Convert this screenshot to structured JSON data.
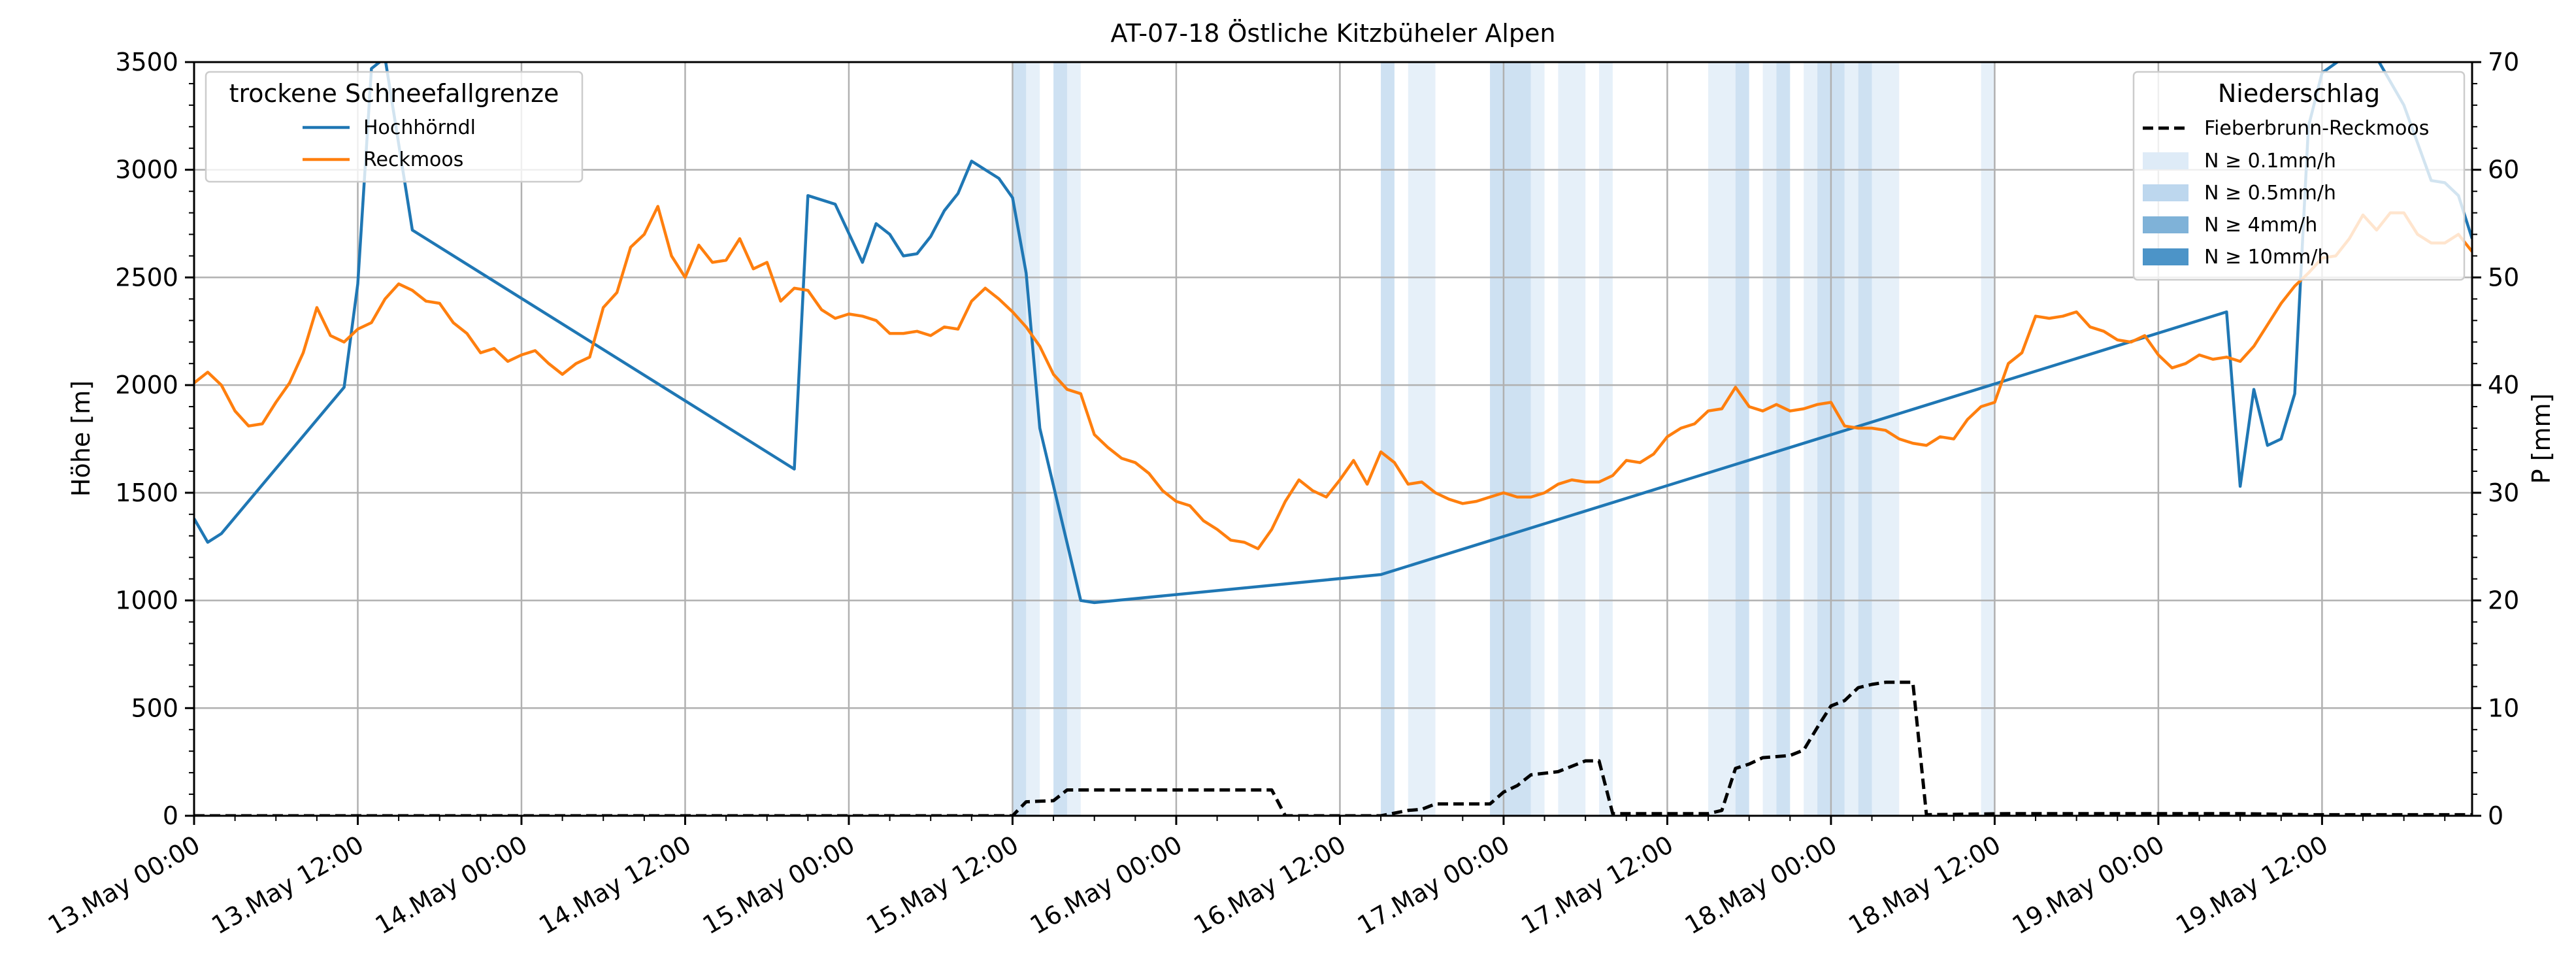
{
  "chart_data": {
    "type": "line",
    "title": "AT-07-18 Östliche Kitzbüheler Alpen",
    "ylabel": "Höhe [m]",
    "y2label": "P [mm]",
    "xlim": [
      0,
      167
    ],
    "ylim": [
      0,
      3500
    ],
    "y2lim": [
      0,
      70
    ],
    "grid": true,
    "x_unit": "hours since 13.May 00:00",
    "x_ticks": [
      {
        "x": 0,
        "label": "13.May 00:00"
      },
      {
        "x": 12,
        "label": "13.May 12:00"
      },
      {
        "x": 24,
        "label": "14.May 00:00"
      },
      {
        "x": 36,
        "label": "14.May 12:00"
      },
      {
        "x": 48,
        "label": "15.May 00:00"
      },
      {
        "x": 60,
        "label": "15.May 12:00"
      },
      {
        "x": 72,
        "label": "16.May 00:00"
      },
      {
        "x": 84,
        "label": "16.May 12:00"
      },
      {
        "x": 96,
        "label": "17.May 00:00"
      },
      {
        "x": 108,
        "label": "17.May 12:00"
      },
      {
        "x": 120,
        "label": "18.May 00:00"
      },
      {
        "x": 132,
        "label": "18.May 12:00"
      },
      {
        "x": 144,
        "label": "19.May 00:00"
      },
      {
        "x": 156,
        "label": "19.May 12:00"
      }
    ],
    "y_ticks": [
      0,
      500,
      1000,
      1500,
      2000,
      2500,
      3000,
      3500
    ],
    "y2_ticks": [
      0,
      10,
      20,
      30,
      40,
      50,
      60,
      70
    ],
    "legend_left": {
      "title": "trockene Schneefallgrenze",
      "placement": "top-left",
      "entries": [
        "Hochhörndl",
        "Reckmoos"
      ]
    },
    "legend_right": {
      "title": "Niederschlag",
      "placement": "top-right",
      "entries": [
        "Fieberbrunn-Reckmoos",
        "N ≥ 0.1mm/h",
        "N ≥ 0.5mm/h",
        "N ≥ 4mm/h",
        "N ≥ 10mm/h"
      ],
      "colors": [
        "#000000",
        "#deebf7",
        "#bdd7ee",
        "#7fb2d8",
        "#4c94c8"
      ]
    },
    "series": [
      {
        "name": "Hochhörndl",
        "color": "#1f77b4",
        "axis": "left",
        "points": [
          [
            0,
            1380
          ],
          [
            1,
            1270
          ],
          [
            2,
            1310
          ],
          [
            11,
            1990
          ],
          [
            12,
            2470
          ],
          [
            13,
            3470
          ],
          [
            14,
            3520
          ],
          [
            16,
            2720
          ],
          [
            44,
            1610
          ],
          [
            45,
            2880
          ],
          [
            47,
            2840
          ],
          [
            49,
            2570
          ],
          [
            50,
            2750
          ],
          [
            51,
            2700
          ],
          [
            52,
            2600
          ],
          [
            53,
            2610
          ],
          [
            54,
            2690
          ],
          [
            55,
            2810
          ],
          [
            56,
            2890
          ],
          [
            57,
            3040
          ],
          [
            59,
            2960
          ],
          [
            60,
            2870
          ],
          [
            61,
            2520
          ],
          [
            62,
            1800
          ],
          [
            65,
            1000
          ],
          [
            66,
            990
          ],
          [
            87,
            1120
          ],
          [
            149,
            2340
          ],
          [
            150,
            1530
          ],
          [
            151,
            1980
          ],
          [
            152,
            1720
          ],
          [
            153,
            1750
          ],
          [
            154,
            1960
          ],
          [
            155,
            3200
          ],
          [
            156,
            3450
          ],
          [
            158,
            3540
          ],
          [
            160,
            3520
          ],
          [
            162,
            3300
          ],
          [
            164,
            2950
          ],
          [
            165,
            2940
          ],
          [
            166,
            2880
          ],
          [
            167,
            2680
          ]
        ]
      },
      {
        "name": "Reckmoos",
        "color": "#ff7f0e",
        "axis": "left",
        "points": [
          [
            0,
            2010
          ],
          [
            1,
            2060
          ],
          [
            2,
            2000
          ],
          [
            3,
            1880
          ],
          [
            4,
            1810
          ],
          [
            5,
            1820
          ],
          [
            6,
            1920
          ],
          [
            7,
            2010
          ],
          [
            8,
            2150
          ],
          [
            9,
            2360
          ],
          [
            10,
            2230
          ],
          [
            11,
            2200
          ],
          [
            12,
            2260
          ],
          [
            13,
            2290
          ],
          [
            14,
            2400
          ],
          [
            15,
            2470
          ],
          [
            16,
            2440
          ],
          [
            17,
            2390
          ],
          [
            18,
            2380
          ],
          [
            19,
            2290
          ],
          [
            20,
            2240
          ],
          [
            21,
            2150
          ],
          [
            22,
            2170
          ],
          [
            23,
            2110
          ],
          [
            24,
            2140
          ],
          [
            25,
            2160
          ],
          [
            26,
            2100
          ],
          [
            27,
            2050
          ],
          [
            28,
            2100
          ],
          [
            29,
            2130
          ],
          [
            30,
            2360
          ],
          [
            31,
            2430
          ],
          [
            32,
            2640
          ],
          [
            33,
            2700
          ],
          [
            34,
            2830
          ],
          [
            35,
            2600
          ],
          [
            36,
            2500
          ],
          [
            37,
            2650
          ],
          [
            38,
            2570
          ],
          [
            39,
            2580
          ],
          [
            40,
            2680
          ],
          [
            41,
            2540
          ],
          [
            42,
            2570
          ],
          [
            43,
            2390
          ],
          [
            44,
            2450
          ],
          [
            45,
            2440
          ],
          [
            46,
            2350
          ],
          [
            47,
            2310
          ],
          [
            48,
            2330
          ],
          [
            49,
            2320
          ],
          [
            50,
            2300
          ],
          [
            51,
            2240
          ],
          [
            52,
            2240
          ],
          [
            53,
            2250
          ],
          [
            54,
            2230
          ],
          [
            55,
            2270
          ],
          [
            56,
            2260
          ],
          [
            57,
            2390
          ],
          [
            58,
            2450
          ],
          [
            59,
            2400
          ],
          [
            60,
            2340
          ],
          [
            61,
            2270
          ],
          [
            62,
            2180
          ],
          [
            63,
            2050
          ],
          [
            64,
            1980
          ],
          [
            65,
            1960
          ],
          [
            66,
            1770
          ],
          [
            67,
            1710
          ],
          [
            68,
            1660
          ],
          [
            69,
            1640
          ],
          [
            70,
            1590
          ],
          [
            71,
            1510
          ],
          [
            72,
            1460
          ],
          [
            73,
            1440
          ],
          [
            74,
            1370
          ],
          [
            75,
            1330
          ],
          [
            76,
            1280
          ],
          [
            77,
            1270
          ],
          [
            78,
            1240
          ],
          [
            79,
            1330
          ],
          [
            80,
            1460
          ],
          [
            81,
            1560
          ],
          [
            82,
            1510
          ],
          [
            83,
            1480
          ],
          [
            84,
            1560
          ],
          [
            85,
            1650
          ],
          [
            86,
            1540
          ],
          [
            87,
            1690
          ],
          [
            88,
            1640
          ],
          [
            89,
            1540
          ],
          [
            90,
            1550
          ],
          [
            91,
            1500
          ],
          [
            92,
            1470
          ],
          [
            93,
            1450
          ],
          [
            94,
            1460
          ],
          [
            95,
            1480
          ],
          [
            96,
            1500
          ],
          [
            97,
            1480
          ],
          [
            98,
            1480
          ],
          [
            99,
            1500
          ],
          [
            100,
            1540
          ],
          [
            101,
            1560
          ],
          [
            102,
            1550
          ],
          [
            103,
            1550
          ],
          [
            104,
            1580
          ],
          [
            105,
            1650
          ],
          [
            106,
            1640
          ],
          [
            107,
            1680
          ],
          [
            108,
            1760
          ],
          [
            109,
            1800
          ],
          [
            110,
            1820
          ],
          [
            111,
            1880
          ],
          [
            112,
            1890
          ],
          [
            113,
            1990
          ],
          [
            114,
            1900
          ],
          [
            115,
            1880
          ],
          [
            116,
            1910
          ],
          [
            117,
            1880
          ],
          [
            118,
            1890
          ],
          [
            119,
            1910
          ],
          [
            120,
            1920
          ],
          [
            121,
            1810
          ],
          [
            122,
            1800
          ],
          [
            123,
            1800
          ],
          [
            124,
            1790
          ],
          [
            125,
            1750
          ],
          [
            126,
            1730
          ],
          [
            127,
            1720
          ],
          [
            128,
            1760
          ],
          [
            129,
            1750
          ],
          [
            130,
            1840
          ],
          [
            131,
            1900
          ],
          [
            132,
            1920
          ],
          [
            133,
            2100
          ],
          [
            134,
            2150
          ],
          [
            135,
            2320
          ],
          [
            136,
            2310
          ],
          [
            137,
            2320
          ],
          [
            138,
            2340
          ],
          [
            139,
            2270
          ],
          [
            140,
            2250
          ],
          [
            141,
            2210
          ],
          [
            142,
            2200
          ],
          [
            143,
            2230
          ],
          [
            144,
            2140
          ],
          [
            145,
            2080
          ],
          [
            146,
            2100
          ],
          [
            147,
            2140
          ],
          [
            148,
            2120
          ],
          [
            149,
            2130
          ],
          [
            150,
            2110
          ],
          [
            151,
            2180
          ],
          [
            152,
            2280
          ],
          [
            153,
            2380
          ],
          [
            154,
            2460
          ],
          [
            155,
            2520
          ],
          [
            156,
            2590
          ],
          [
            157,
            2600
          ],
          [
            158,
            2680
          ],
          [
            159,
            2790
          ],
          [
            160,
            2720
          ],
          [
            161,
            2800
          ],
          [
            162,
            2800
          ],
          [
            163,
            2700
          ],
          [
            164,
            2660
          ],
          [
            165,
            2660
          ],
          [
            166,
            2700
          ],
          [
            167,
            2620
          ]
        ]
      },
      {
        "name": "Fieberbrunn-Reckmoos",
        "color": "#000000",
        "style": "dashed",
        "axis": "right",
        "points": [
          [
            0,
            0
          ],
          [
            60,
            0
          ],
          [
            61,
            1.3
          ],
          [
            63,
            1.4
          ],
          [
            64,
            2.4
          ],
          [
            79,
            2.4
          ],
          [
            80,
            0
          ],
          [
            87,
            0
          ],
          [
            89,
            0.5
          ],
          [
            90,
            0.6
          ],
          [
            91,
            1.1
          ],
          [
            95,
            1.1
          ],
          [
            96,
            2.2
          ],
          [
            97,
            2.8
          ],
          [
            98,
            3.8
          ],
          [
            100,
            4.1
          ],
          [
            102,
            5.1
          ],
          [
            103,
            5.1
          ],
          [
            104,
            0.2
          ],
          [
            111,
            0.2
          ],
          [
            112,
            0.5
          ],
          [
            113,
            4.4
          ],
          [
            114,
            4.8
          ],
          [
            115,
            5.4
          ],
          [
            117,
            5.6
          ],
          [
            118,
            6.1
          ],
          [
            119,
            8.2
          ],
          [
            120,
            10.2
          ],
          [
            121,
            10.7
          ],
          [
            122,
            11.9
          ],
          [
            123,
            12.2
          ],
          [
            124,
            12.4
          ],
          [
            126,
            12.4
          ],
          [
            127,
            0.1
          ],
          [
            133,
            0.2
          ],
          [
            150,
            0.2
          ],
          [
            155,
            0.1
          ],
          [
            167,
            0.1
          ]
        ]
      }
    ],
    "precip_bands": [
      {
        "start": 60,
        "end": 61,
        "level": 1
      },
      {
        "start": 61,
        "end": 62,
        "level": 0
      },
      {
        "start": 63,
        "end": 64,
        "level": 1
      },
      {
        "start": 64,
        "end": 65,
        "level": 0
      },
      {
        "start": 87,
        "end": 88,
        "level": 1
      },
      {
        "start": 89,
        "end": 91,
        "level": 0
      },
      {
        "start": 95,
        "end": 98,
        "level": 1
      },
      {
        "start": 98,
        "end": 99,
        "level": 0
      },
      {
        "start": 100,
        "end": 102,
        "level": 0
      },
      {
        "start": 103,
        "end": 104,
        "level": 0
      },
      {
        "start": 111,
        "end": 113,
        "level": 0
      },
      {
        "start": 113,
        "end": 114,
        "level": 1
      },
      {
        "start": 115,
        "end": 116,
        "level": 0
      },
      {
        "start": 116,
        "end": 117,
        "level": 1
      },
      {
        "start": 118,
        "end": 119,
        "level": 0
      },
      {
        "start": 119,
        "end": 121,
        "level": 1
      },
      {
        "start": 121,
        "end": 122,
        "level": 0
      },
      {
        "start": 122,
        "end": 123,
        "level": 1
      },
      {
        "start": 123,
        "end": 125,
        "level": 0
      },
      {
        "start": 131,
        "end": 132,
        "level": 0
      }
    ]
  }
}
